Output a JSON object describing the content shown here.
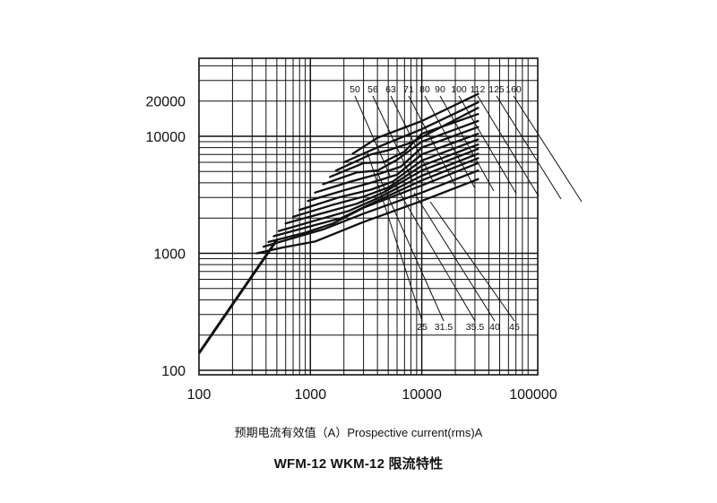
{
  "chart_data": {
    "type": "line",
    "title": "WFM-12 WKM-12  限流特性",
    "xlabel": "预期电流有效值（A）Prospective current(rms)A",
    "ylabel": "",
    "xscale": "log",
    "yscale": "log",
    "xlim": [
      100,
      100000
    ],
    "ylim": [
      100,
      40000
    ],
    "x_ticks": [
      "100",
      "1000",
      "10000",
      "100000"
    ],
    "y_ticks": [
      "100",
      "1000",
      "10000",
      "20000"
    ],
    "grid": true,
    "asymptote": {
      "x": [
        100,
        500
      ],
      "y": [
        140,
        1300
      ]
    },
    "rating_labels_top": [
      "50",
      "56",
      "63",
      "71",
      "80",
      "90",
      "100",
      "112",
      "125",
      "160"
    ],
    "rating_labels_bottom": [
      "25",
      "31.5",
      "35.5",
      "40",
      "45"
    ],
    "series": [
      {
        "name": "25",
        "x": [
          330,
          560,
          1100,
          3000,
          10000,
          32000
        ],
        "y": [
          1000,
          1120,
          1260,
          1850,
          2800,
          4300
        ]
      },
      {
        "name": "31.5",
        "x": [
          380,
          700,
          1300,
          3000,
          10000,
          32000
        ],
        "y": [
          1140,
          1350,
          1600,
          2180,
          3300,
          5100
        ]
      },
      {
        "name": "35.5",
        "x": [
          420,
          900,
          1600,
          3000,
          10000,
          32000
        ],
        "y": [
          1250,
          1500,
          1800,
          2450,
          3800,
          5900
        ]
      },
      {
        "name": "40",
        "x": [
          470,
          1000,
          1900,
          3500,
          10000,
          32000
        ],
        "y": [
          1400,
          1700,
          2000,
          2650,
          4200,
          6500
        ]
      },
      {
        "name": "45",
        "x": [
          520,
          1200,
          2200,
          4000,
          10000,
          32000
        ],
        "y": [
          1550,
          1950,
          2300,
          2950,
          4600,
          7100
        ]
      },
      {
        "name": "50",
        "x": [
          600,
          1400,
          2600,
          4500,
          10000,
          32000
        ],
        "y": [
          1800,
          2250,
          2650,
          3300,
          5100,
          7800
        ]
      },
      {
        "name": "56",
        "x": [
          700,
          1600,
          3000,
          5000,
          10000,
          32000
        ],
        "y": [
          2050,
          2600,
          3050,
          3650,
          5600,
          8500
        ]
      },
      {
        "name": "63",
        "x": [
          800,
          1800,
          3500,
          5500,
          10000,
          32000
        ],
        "y": [
          2350,
          3000,
          3500,
          4100,
          6200,
          9400
        ]
      },
      {
        "name": "71",
        "x": [
          950,
          2000,
          3800,
          6000,
          10000,
          32000
        ],
        "y": [
          2800,
          3450,
          4100,
          4700,
          7000,
          10500
        ]
      },
      {
        "name": "80",
        "x": [
          1100,
          2300,
          4200,
          6500,
          10000,
          32000
        ],
        "y": [
          3300,
          4100,
          4800,
          5500,
          8000,
          12000
        ]
      },
      {
        "name": "90",
        "x": [
          1300,
          2600,
          4000,
          6000,
          10000,
          32000
        ],
        "y": [
          3900,
          4900,
          5100,
          6300,
          9000,
          13500
        ]
      },
      {
        "name": "100",
        "x": [
          1500,
          3000,
          4500,
          7000,
          10000,
          32000
        ],
        "y": [
          4500,
          5900,
          6000,
          7400,
          10500,
          15500
        ]
      },
      {
        "name": "112",
        "x": [
          1700,
          3500,
          5000,
          8000,
          32000
        ],
        "y": [
          5100,
          7000,
          7600,
          8800,
          17500
        ]
      },
      {
        "name": "125",
        "x": [
          2000,
          4200,
          10000,
          32000
        ],
        "y": [
          6000,
          8200,
          11500,
          19500
        ]
      },
      {
        "name": "160",
        "x": [
          2400,
          4000,
          10000,
          32000
        ],
        "y": [
          7100,
          9700,
          13500,
          23000
        ]
      }
    ]
  }
}
